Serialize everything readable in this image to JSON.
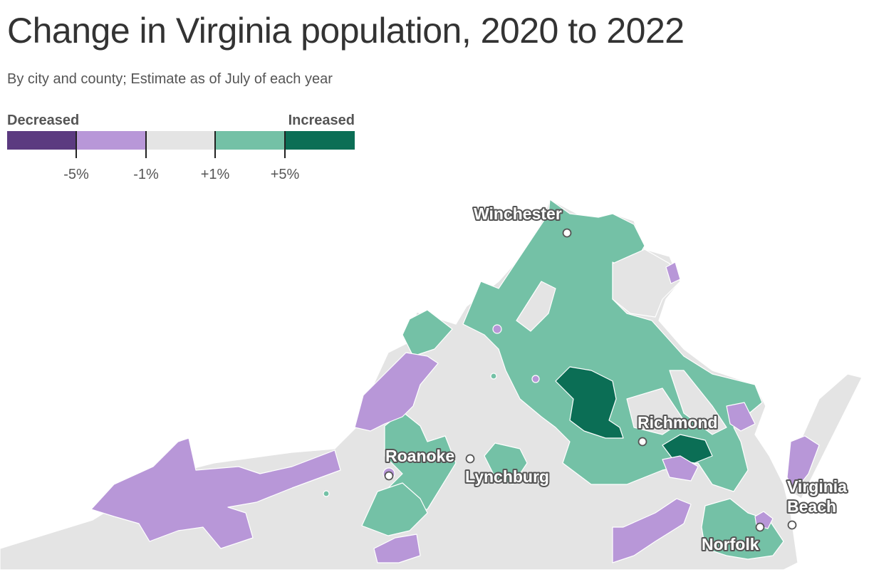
{
  "title": "Change in Virginia population, 2020 to 2022",
  "subtitle": "By city and county; Estimate as of July of each year",
  "legend": {
    "low_label": "Decreased",
    "high_label": "Increased",
    "colors": [
      "#5b3a80",
      "#b897d8",
      "#e4e4e4",
      "#74c1a6",
      "#0b6e55"
    ],
    "ticks": [
      "-5%",
      "-1%",
      "+1%",
      "+5%"
    ]
  },
  "colors": {
    "big_decrease": "#5b3a80",
    "decrease": "#b897d8",
    "stable": "#e4e4e4",
    "increase": "#74c1a6",
    "big_increase": "#0b6e55"
  },
  "cities": [
    {
      "name": "Winchester"
    },
    {
      "name": "Richmond"
    },
    {
      "name": "Roanoke"
    },
    {
      "name": "Lynchburg"
    },
    {
      "name": "Virginia Beach",
      "line1": "Virginia",
      "line2": "Beach"
    },
    {
      "name": "Norfolk"
    }
  ]
}
